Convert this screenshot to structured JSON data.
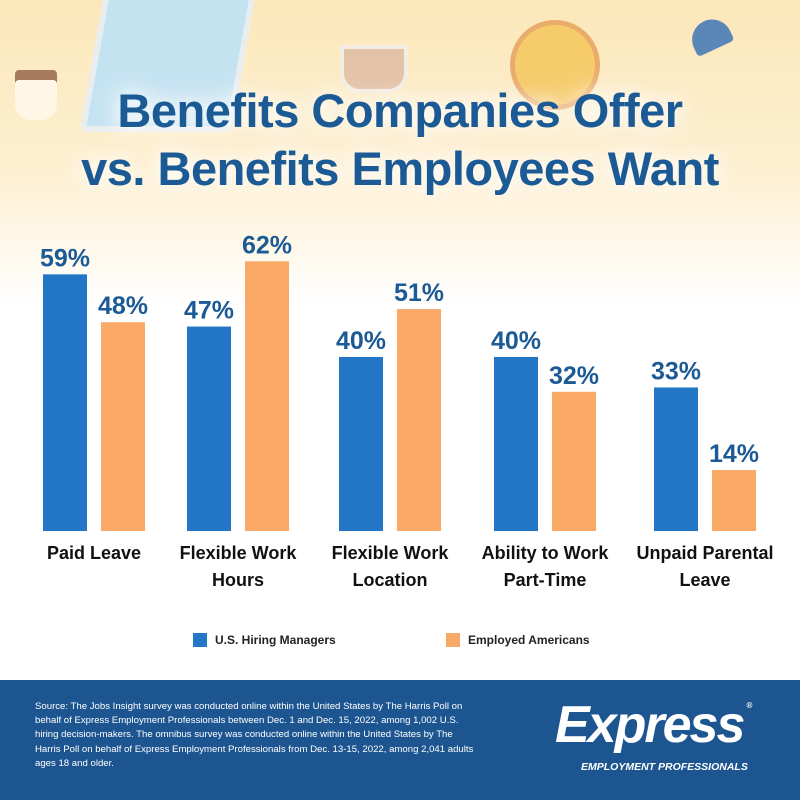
{
  "title_line1": "Benefits Companies Offer",
  "title_line2": "vs. Benefits Employees Want",
  "colors": {
    "blue": "#2376c6",
    "orange": "#f9a866",
    "title": "#1b5a94",
    "footer": "#1d5590"
  },
  "chart_data": {
    "type": "bar",
    "categories": [
      [
        "Paid Leave"
      ],
      [
        "Flexible Work",
        "Hours"
      ],
      [
        "Flexible Work",
        "Location"
      ],
      [
        "Ability to Work",
        "Part-Time"
      ],
      [
        "Unpaid Parental",
        "Leave"
      ]
    ],
    "series": [
      {
        "name": "U.S. Hiring Managers",
        "values": [
          59,
          47,
          40,
          40,
          33
        ],
        "labels": [
          "59%",
          "47%",
          "40%",
          "40%",
          "33%"
        ]
      },
      {
        "name": "Employed Americans",
        "values": [
          48,
          62,
          51,
          32,
          14
        ],
        "labels": [
          "48%",
          "62%",
          "51%",
          "32%",
          "14%"
        ]
      }
    ],
    "ylim": [
      0,
      100
    ],
    "grid": false,
    "legend": "bottom"
  },
  "footer": {
    "source": "Source: The Jobs Insight survey was conducted online within the United States by The Harris Poll on behalf of Express Employment Professionals between Dec. 1 and Dec. 15, 2022, among 1,002 U.S. hiring decision-makers. The omnibus survey was conducted online within the United States by The Harris Poll on behalf of Express Employment Professionals from Dec. 13-15, 2022, among 2,041 adults ages 18 and older.",
    "logo_main": "Express",
    "logo_sub": "EMPLOYMENT PROFESSIONALS"
  }
}
